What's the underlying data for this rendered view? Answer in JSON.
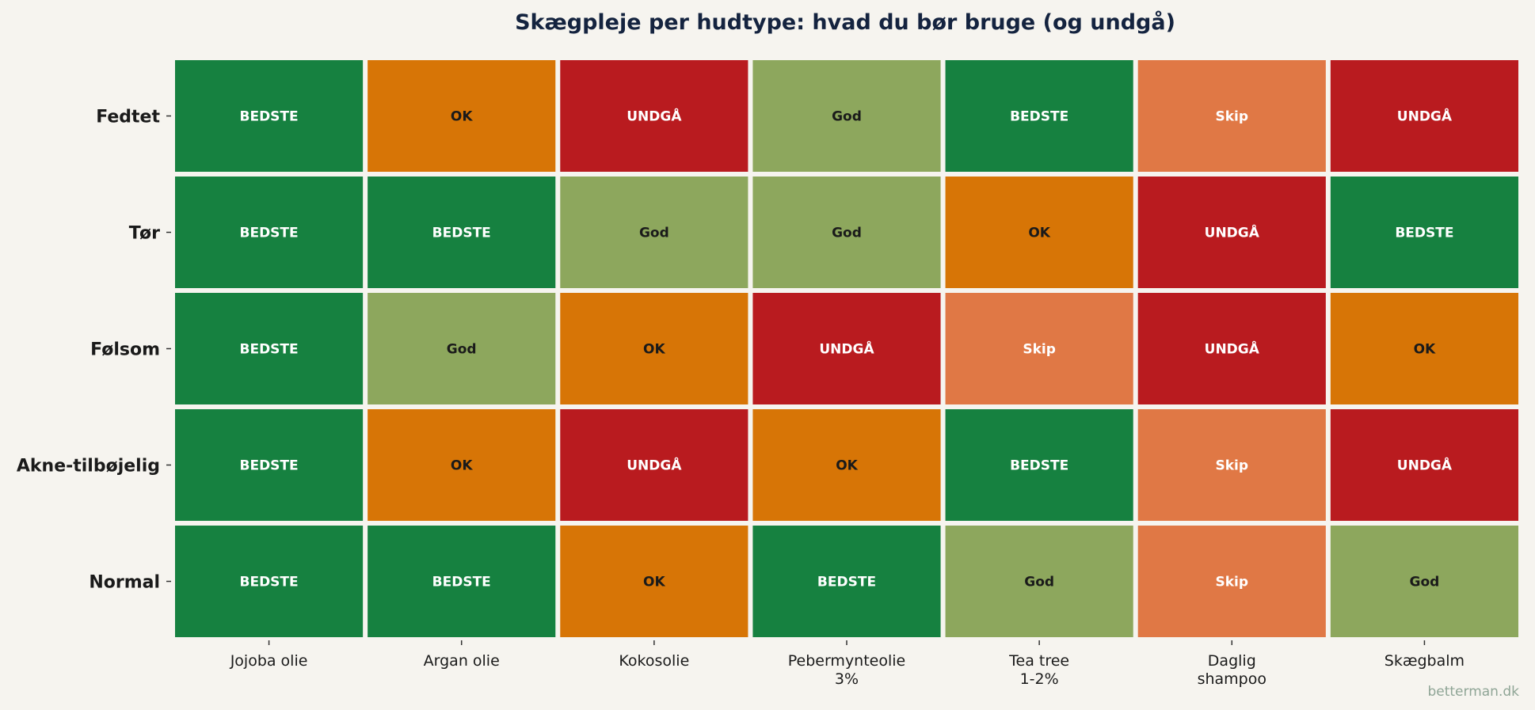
{
  "chart_data": {
    "type": "heatmap",
    "title": "Skægpleje per hudtype: hvad du bør bruge (og undgå)",
    "rows": [
      "Fedtet",
      "Tør",
      "Følsom",
      "Akne-tilbøjelig",
      "Normal"
    ],
    "columns": [
      [
        "Jojoba olie"
      ],
      [
        "Argan olie"
      ],
      [
        "Kokosolie"
      ],
      [
        "Pebermynteolie",
        "3%"
      ],
      [
        "Tea tree",
        "1-2%"
      ],
      [
        "Daglig",
        "shampoo"
      ],
      [
        "Skægbalm"
      ]
    ],
    "values": [
      [
        "BEDSTE",
        "OK",
        "UNDGÅ",
        "God",
        "BEDSTE",
        "Skip",
        "UNDGÅ"
      ],
      [
        "BEDSTE",
        "BEDSTE",
        "God",
        "God",
        "OK",
        "UNDGÅ",
        "BEDSTE"
      ],
      [
        "BEDSTE",
        "God",
        "OK",
        "UNDGÅ",
        "Skip",
        "UNDGÅ",
        "OK"
      ],
      [
        "BEDSTE",
        "OK",
        "UNDGÅ",
        "OK",
        "BEDSTE",
        "Skip",
        "UNDGÅ"
      ],
      [
        "BEDSTE",
        "BEDSTE",
        "OK",
        "BEDSTE",
        "God",
        "Skip",
        "God"
      ]
    ],
    "category_colors": {
      "BEDSTE": "#168140",
      "God": "#8da75d",
      "OK": "#d77506",
      "Skip": "#e07845",
      "UNDGÅ": "#b91b1f"
    },
    "category_text_colors": {
      "BEDSTE": "#ffffff",
      "God": "#1a1a1a",
      "OK": "#1a1a1a",
      "Skip": "#ffffff",
      "UNDGÅ": "#ffffff"
    }
  },
  "watermark": "betterman.dk"
}
